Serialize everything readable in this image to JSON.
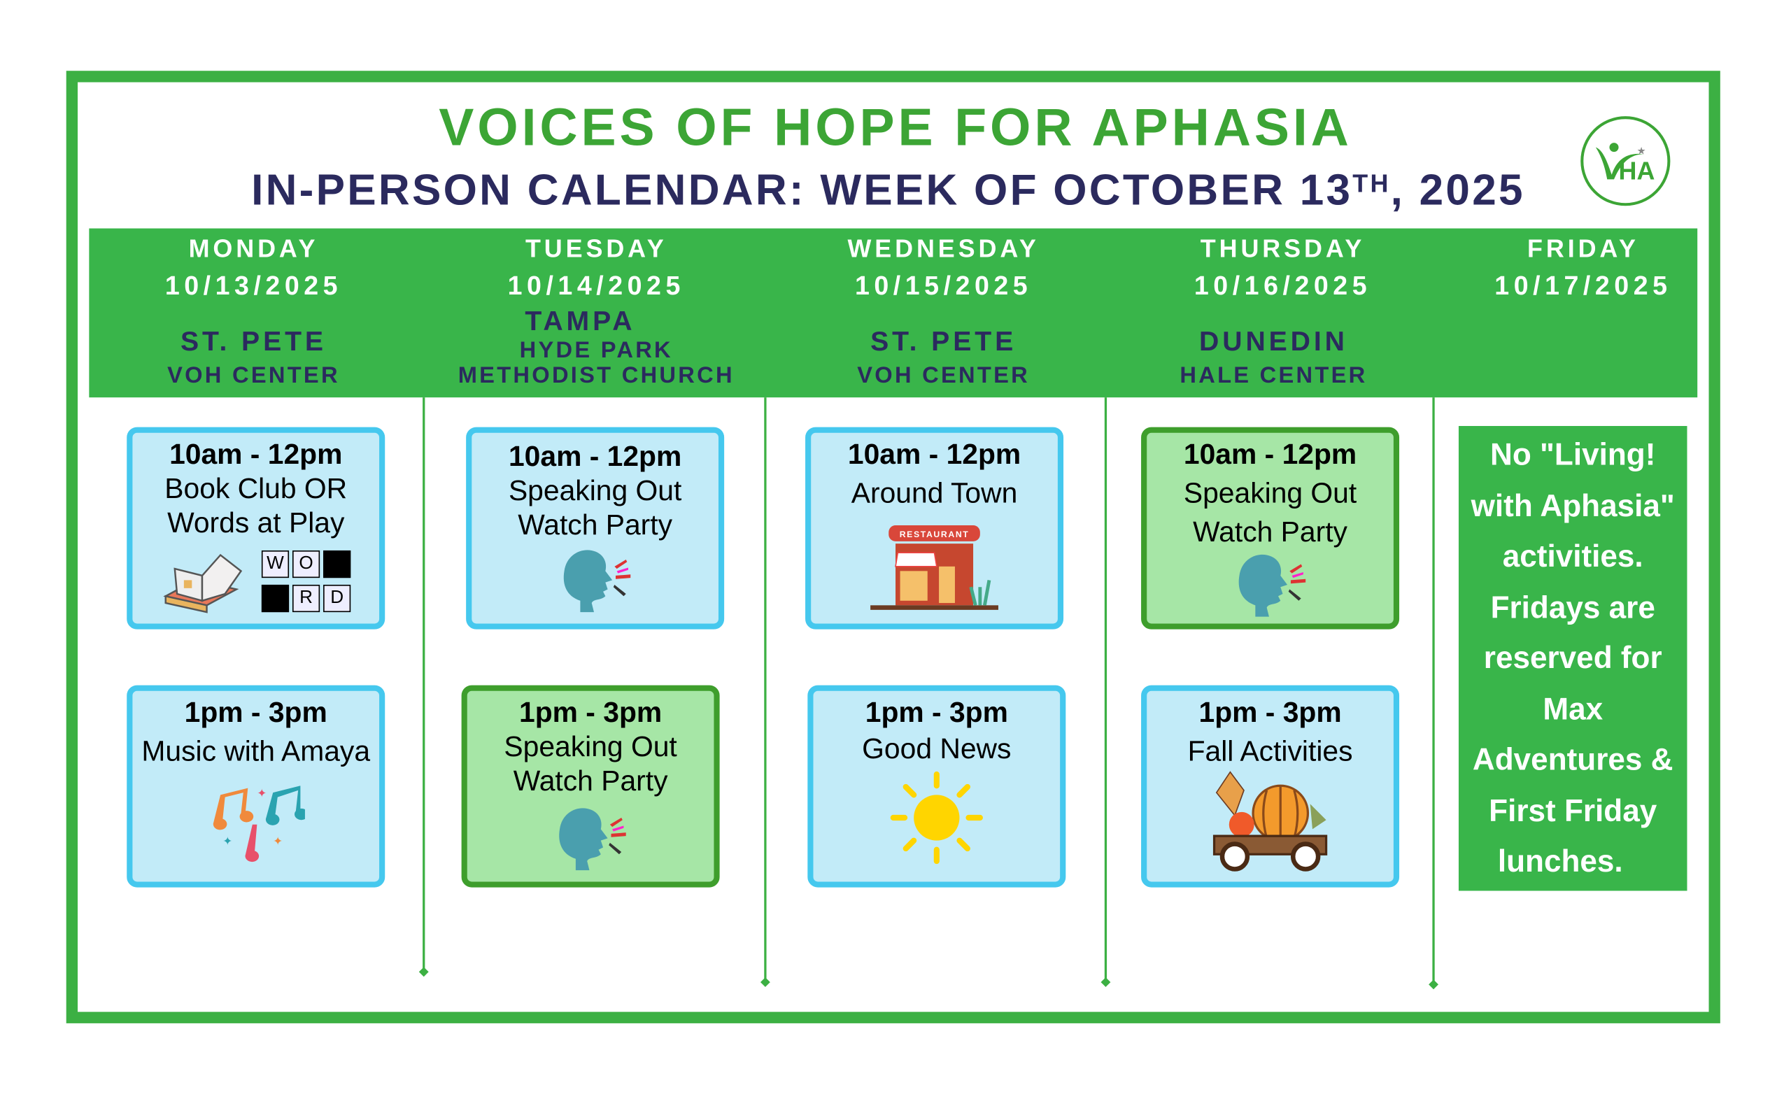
{
  "header": {
    "title": "VOICES OF HOPE FOR APHASIA",
    "subtitle_prefix": "IN-PERSON CALENDAR: WEEK OF OCTOBER 13",
    "subtitle_sup": "TH",
    "subtitle_suffix": ", 2025",
    "logo_text": "VHA"
  },
  "colors": {
    "green": "#39b54a",
    "navy": "#2b2a5e",
    "card_blue": "#c2ebf8",
    "card_blue_border": "#45c8ee",
    "card_green": "#a6e6a6",
    "card_green_border": "#3e9e2c"
  },
  "days": [
    {
      "day": "MONDAY",
      "date": "10/13/2025",
      "location": "ST. PETE",
      "venue": "VOH CENTER"
    },
    {
      "day": "TUESDAY",
      "date": "10/14/2025",
      "location": "TAMPA",
      "venue_line1": "HYDE PARK",
      "venue_line2": "METHODIST CHURCH"
    },
    {
      "day": "WEDNESDAY",
      "date": "10/15/2025",
      "location": "ST. PETE",
      "venue": "VOH CENTER"
    },
    {
      "day": "THURSDAY",
      "date": "10/16/2025",
      "location": "DUNEDIN",
      "venue": "HALE CENTER"
    },
    {
      "day": "FRIDAY",
      "date": "10/17/2025"
    }
  ],
  "events": {
    "mon_am": {
      "time": "10am - 12pm",
      "line1": "Book Club OR",
      "line2": "Words at Play",
      "icon": "book-and-word-grid-icon",
      "word_letters": [
        "W",
        "O",
        "",
        "",
        "R",
        "D"
      ]
    },
    "mon_pm": {
      "time": "1pm - 3pm",
      "line1": "Music with Amaya",
      "icon": "music-notes-icon"
    },
    "tue_am": {
      "time": "10am - 12pm",
      "line1": "Speaking Out",
      "line2": "Watch Party",
      "icon": "speaking-head-icon"
    },
    "tue_pm": {
      "time": "1pm - 3pm",
      "line1": "Speaking Out",
      "line2": "Watch Party",
      "icon": "speaking-head-icon"
    },
    "wed_am": {
      "time": "10am - 12pm",
      "line1": "Around Town",
      "icon": "restaurant-icon",
      "sign": "RESTAURANT"
    },
    "wed_pm": {
      "time": "1pm - 3pm",
      "line1": "Good News",
      "icon": "sun-icon"
    },
    "thu_am": {
      "time": "10am - 12pm",
      "line1": "Speaking Out",
      "line2": "Watch Party",
      "icon": "speaking-head-icon"
    },
    "thu_pm": {
      "time": "1pm - 3pm",
      "line1": "Fall Activities",
      "icon": "pumpkin-wagon-icon"
    }
  },
  "friday_note": [
    "No \"Living!",
    "with Aphasia\"",
    "activities.",
    "Fridays are",
    "reserved for",
    "Max",
    "Adventures &",
    "First Friday",
    "lunches."
  ]
}
